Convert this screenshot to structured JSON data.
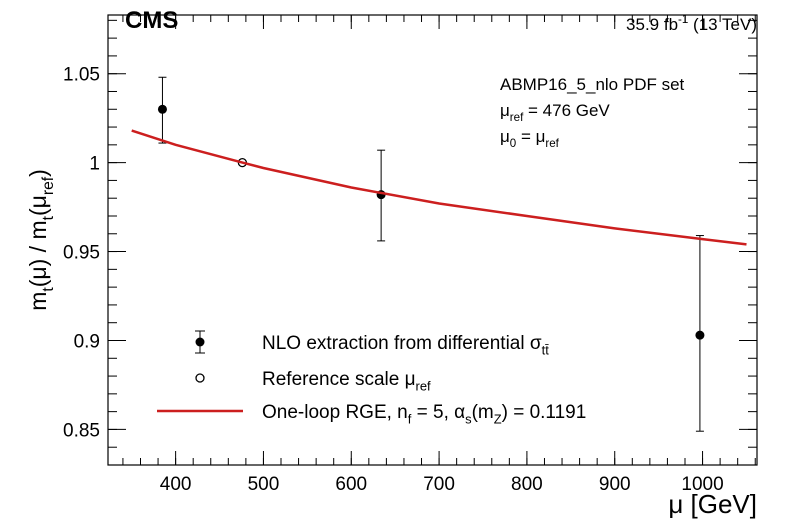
{
  "chart_data": {
    "type": "scatter",
    "experiment": "CMS",
    "luminosity": {
      "parts": [
        "35.9 fb",
        "-1",
        " (13 TeV)"
      ],
      "script": "sup"
    },
    "x_label": "μ [GeV]",
    "y_label": {
      "parts": [
        "m",
        "t",
        "(μ) / m",
        "t",
        "(μ",
        "ref",
        ")"
      ],
      "script": "sub"
    },
    "annotations": [
      {
        "parts": [
          "ABMP16_5_nlo PDF set"
        ],
        "script": "sub"
      },
      {
        "parts": [
          "μ",
          "ref",
          " = 476 GeV"
        ],
        "script": "sub"
      },
      {
        "parts": [
          "μ",
          "0",
          " = μ",
          "ref"
        ],
        "script": "sub"
      }
    ],
    "xlim": [
      323,
      1062
    ],
    "ylim": [
      0.83,
      1.083
    ],
    "xticks": [
      400,
      500,
      600,
      700,
      800,
      900,
      1000
    ],
    "yticks": [
      0.85,
      0.9,
      0.95,
      1,
      1.05
    ],
    "series": [
      {
        "name": {
          "parts": [
            "NLO extraction from differential σ",
            "tt̄"
          ],
          "script": "sub"
        },
        "kind": "points",
        "color": "#000000",
        "x": [
          385,
          634,
          997
        ],
        "values": [
          1.03,
          0.982,
          0.903
        ],
        "err_plus": [
          0.018,
          0.025,
          0.056
        ],
        "err_minus": [
          0.019,
          0.026,
          0.054
        ]
      },
      {
        "name": {
          "parts": [
            "Reference scale μ",
            "ref"
          ],
          "script": "sub"
        },
        "kind": "open-points",
        "color": "#000000",
        "x": [
          476
        ],
        "values": [
          1
        ]
      },
      {
        "name": {
          "parts": [
            "One-loop RGE, n",
            "f",
            " = 5, α",
            "s",
            "(m",
            "Z",
            ") = 0.1191"
          ],
          "script": "sub"
        },
        "kind": "line",
        "color": "#cc1f1f",
        "x": [
          350,
          400,
          476,
          500,
          600,
          700,
          800,
          900,
          1000,
          1050
        ],
        "values": [
          1.018,
          1.01,
          1,
          0.997,
          0.986,
          0.977,
          0.97,
          0.963,
          0.957,
          0.954
        ]
      }
    ]
  }
}
